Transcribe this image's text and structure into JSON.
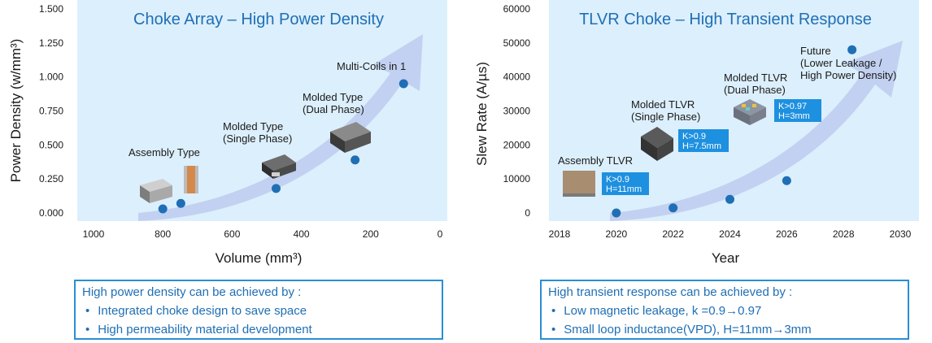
{
  "chart_data": [
    {
      "type": "scatter",
      "title": "Choke Array – High Power Density",
      "xlabel": "Volume (mm³)",
      "ylabel": "Power Density (w/mm³)",
      "xlim": [
        1000,
        0
      ],
      "ylim": [
        0,
        1.5
      ],
      "x_reversed": true,
      "xticks": [
        "1000",
        "800",
        "600",
        "400",
        "200",
        "0"
      ],
      "yticks": [
        "0.000",
        "0.250",
        "0.500",
        "0.750",
        "1.000",
        "1.250",
        "1.500"
      ],
      "points": [
        {
          "x": 800,
          "y": 0.03
        },
        {
          "x": 748,
          "y": 0.07
        },
        {
          "x": 473,
          "y": 0.18
        },
        {
          "x": 245,
          "y": 0.39
        },
        {
          "x": 105,
          "y": 0.95
        }
      ],
      "annotations": [
        "Assembly Type",
        "Molded Type\n(Single Phase)",
        "Molded Type\n(Dual Phase)",
        "Multi-Coils in 1"
      ],
      "grid": false
    },
    {
      "type": "scatter",
      "title": "TLVR Choke – High Transient Response",
      "xlabel": "Year",
      "ylabel": "Slew Rate (A/µs)",
      "xlim": [
        2017,
        2030
      ],
      "ylim": [
        0,
        60000
      ],
      "xticks": [
        "2018",
        "2020",
        "2022",
        "2024",
        "2026",
        "2028",
        "2030"
      ],
      "yticks": [
        "0",
        "10000",
        "20000",
        "30000",
        "40000",
        "50000",
        "60000"
      ],
      "points": [
        {
          "x": 2020,
          "y": 0
        },
        {
          "x": 2022,
          "y": 1500
        },
        {
          "x": 2024,
          "y": 4000
        },
        {
          "x": 2026,
          "y": 9500
        },
        {
          "x": 2028.3,
          "y": 48000
        }
      ],
      "annotations": [
        "Assembly TLVR",
        "Molded TLVR\n(Single Phase)",
        "Molded TLVR\n(Dual Phase)",
        "Future\n(Lower Leakage /\nHigh Power Density)"
      ],
      "tags": [
        {
          "line1": "K>0.9",
          "line2": "H=11mm"
        },
        {
          "line1": "K>0.9",
          "line2": "H=7.5mm"
        },
        {
          "line1": "K>0.97",
          "line2": "H=3mm"
        }
      ],
      "grid": false
    }
  ],
  "boxes": {
    "left": {
      "heading": "High power density can be achieved by :",
      "items": [
        "Integrated choke design to save space",
        "High permeability material development"
      ]
    },
    "right": {
      "heading": "High transient response can be achieved by :",
      "items": [
        "Low magnetic leakage, k =0.9→0.97",
        "Small loop inductance(VPD), H=11mm→3mm"
      ]
    }
  },
  "colors": {
    "title": "#1f6fb5",
    "plot_bg": "#dceffc",
    "marker": "#1f6fb5",
    "tag_bg": "#1e90e0",
    "arrow": "#b9c7ee",
    "box_border": "#2a8fd4"
  }
}
